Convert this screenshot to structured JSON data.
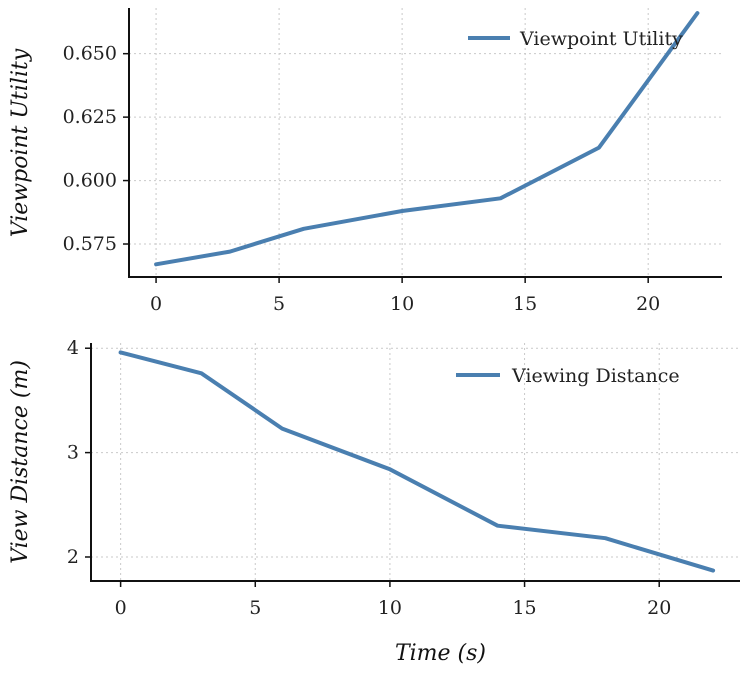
{
  "chart_data": [
    {
      "type": "line",
      "x": [
        0,
        3,
        6,
        10,
        14,
        18,
        22
      ],
      "series": [
        {
          "name": "Viewpoint Utility",
          "values": [
            0.567,
            0.572,
            0.581,
            0.588,
            0.593,
            0.613,
            0.666
          ]
        }
      ],
      "xlabel": "",
      "ylabel": "Viewpoint Utility",
      "xlim": [
        -1.1,
        23
      ],
      "ylim": [
        0.562,
        0.668
      ],
      "xticks": [
        0,
        5,
        10,
        15,
        20
      ],
      "yticks": [
        0.575,
        0.6,
        0.625,
        0.65
      ],
      "xtick_labels": [
        "0",
        "5",
        "10",
        "15",
        "20"
      ],
      "ytick_labels": [
        "0.575",
        "0.600",
        "0.625",
        "0.650"
      ],
      "grid": true,
      "legend": "top-right",
      "color": "#4a7fb0"
    },
    {
      "type": "line",
      "x": [
        0,
        3,
        6,
        10,
        14,
        18,
        22
      ],
      "series": [
        {
          "name": "Viewing Distance",
          "values": [
            3.96,
            3.76,
            3.23,
            2.84,
            2.3,
            2.18,
            1.87
          ]
        }
      ],
      "xlabel": "Time (s)",
      "ylabel": "View Distance (m)",
      "xlim": [
        -1.1,
        23
      ],
      "ylim": [
        1.77,
        4.05
      ],
      "xticks": [
        0,
        5,
        10,
        15,
        20
      ],
      "yticks": [
        2,
        3,
        4
      ],
      "xtick_labels": [
        "0",
        "5",
        "10",
        "15",
        "20"
      ],
      "ytick_labels": [
        "2",
        "3",
        "4"
      ],
      "grid": true,
      "legend": "top-right",
      "color": "#4a7fb0"
    }
  ]
}
